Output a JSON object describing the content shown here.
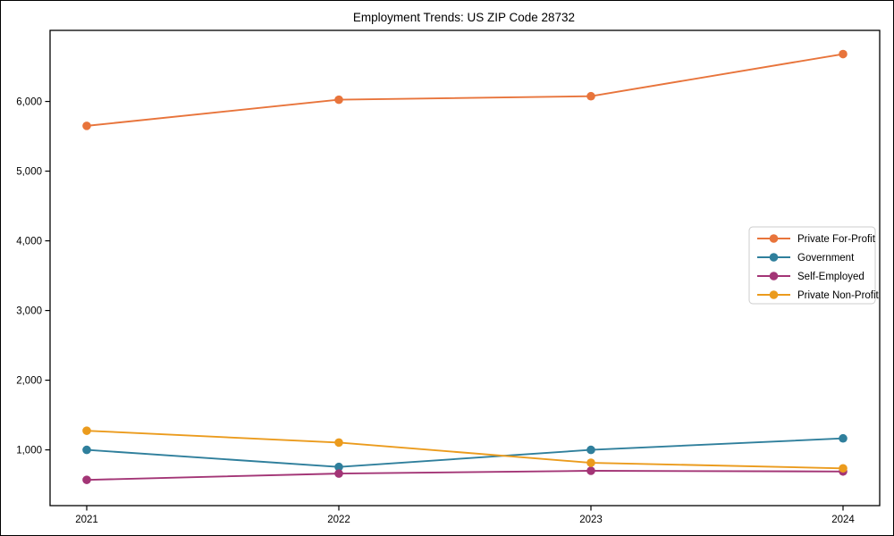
{
  "title": "Employment Trends: US ZIP Code 28732",
  "chart_data": {
    "type": "line",
    "title": "Employment Trends: US ZIP Code 28732",
    "xlabel": "",
    "ylabel": "",
    "x": [
      2021,
      2022,
      2023,
      2024
    ],
    "xtick_labels": [
      "2021",
      "2022",
      "2023",
      "2024"
    ],
    "yticks": [
      1000,
      2000,
      3000,
      4000,
      5000,
      6000
    ],
    "ytick_labels": [
      "1,000",
      "2,000",
      "3,000",
      "4,000",
      "5,000",
      "6,000"
    ],
    "ylim": [
      200,
      7020
    ],
    "grid": false,
    "marker": "circle",
    "legend_position": "center right",
    "series": [
      {
        "name": "Private For-Profit",
        "color": "#e8743b",
        "values": [
          5650,
          6025,
          6075,
          6680
        ]
      },
      {
        "name": "Government",
        "color": "#2f7f9c",
        "values": [
          1000,
          755,
          1000,
          1165
        ]
      },
      {
        "name": "Self-Employed",
        "color": "#a33576",
        "values": [
          570,
          660,
          700,
          690
        ]
      },
      {
        "name": "Private Non-Profit",
        "color": "#eb9b1d",
        "values": [
          1275,
          1105,
          815,
          735
        ]
      }
    ]
  }
}
